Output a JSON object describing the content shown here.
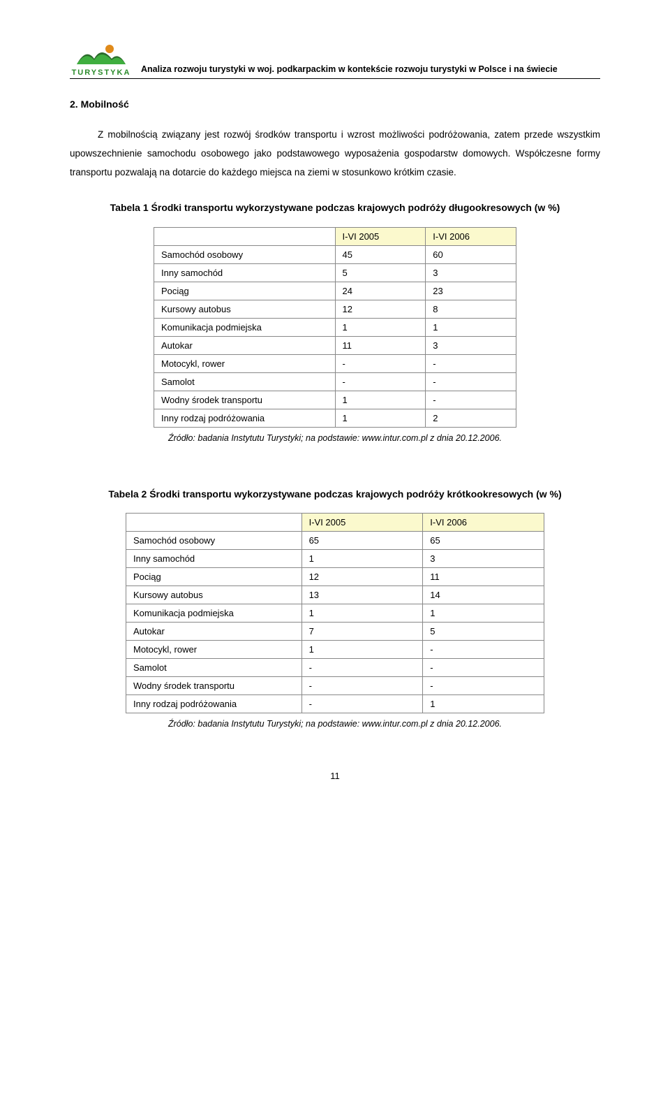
{
  "header": {
    "logo_text": "TURYSTYKA",
    "title": "Analiza rozwoju turystyki w woj. podkarpackim w kontekście rozwoju turystyki w Polsce i na świecie"
  },
  "section": {
    "heading": "2. Mobilność",
    "paragraph1": "Z mobilnością związany jest rozwój środków transportu i wzrost możliwości podróżowania, zatem przede wszystkim upowszechnienie samochodu osobowego jako podstawowego wyposażenia gospodarstw domowych. Współczesne formy transportu pozwalają na dotarcie do każdego miejsca na ziemi w stosunkowo krótkim czasie."
  },
  "table1": {
    "title": "Tabela 1 Środki transportu wykorzystywane podczas krajowych podróży długookresowych (w %)",
    "header_bg": "#fbf9cd",
    "border_color": "#888888",
    "columns": [
      "",
      "I-VI 2005",
      "I-VI 2006"
    ],
    "col_widths_pct": [
      50,
      25,
      25
    ],
    "rows": [
      [
        "Samochód osobowy",
        "45",
        "60"
      ],
      [
        "Inny samochód",
        "5",
        "3"
      ],
      [
        "Pociąg",
        "24",
        "23"
      ],
      [
        "Kursowy autobus",
        "12",
        "8"
      ],
      [
        "Komunikacja podmiejska",
        "1",
        "1"
      ],
      [
        "Autokar",
        "11",
        "3"
      ],
      [
        "Motocykl, rower",
        "-",
        "-"
      ],
      [
        "Samolot",
        "-",
        "-"
      ],
      [
        "Wodny środek transportu",
        "1",
        "-"
      ],
      [
        "Inny rodzaj podróżowania",
        "1",
        "2"
      ]
    ],
    "source": "Źródło: badania Instytutu Turystyki; na podstawie: www.intur.com.pl z dnia 20.12.2006."
  },
  "table2": {
    "title": "Tabela 2 Środki transportu wykorzystywane podczas krajowych podróży krótkookresowych (w %)",
    "header_bg": "#fbf9cd",
    "border_color": "#888888",
    "columns": [
      "",
      "I-VI 2005",
      "I-VI 2006"
    ],
    "col_widths_pct": [
      42,
      29,
      29
    ],
    "rows": [
      [
        "Samochód osobowy",
        "65",
        "65"
      ],
      [
        "Inny samochód",
        "1",
        "3"
      ],
      [
        "Pociąg",
        "12",
        "11"
      ],
      [
        "Kursowy autobus",
        "13",
        "14"
      ],
      [
        "Komunikacja podmiejska",
        "1",
        "1"
      ],
      [
        "Autokar",
        "7",
        "5"
      ],
      [
        "Motocykl, rower",
        "1",
        "-"
      ],
      [
        "Samolot",
        "-",
        "-"
      ],
      [
        "Wodny środek transportu",
        "-",
        "-"
      ],
      [
        "Inny rodzaj podróżowania",
        "-",
        "1"
      ]
    ],
    "source": "Źródło: badania Instytutu Turystyki; na podstawie: www.intur.com.pl z dnia 20.12.2006."
  },
  "page_number": "11",
  "colors": {
    "page_bg": "#ffffff",
    "text": "#000000",
    "logo_green": "#2a8a2a",
    "logo_orange": "#e08a1a",
    "logo_dark_green": "#2b6b2b"
  }
}
